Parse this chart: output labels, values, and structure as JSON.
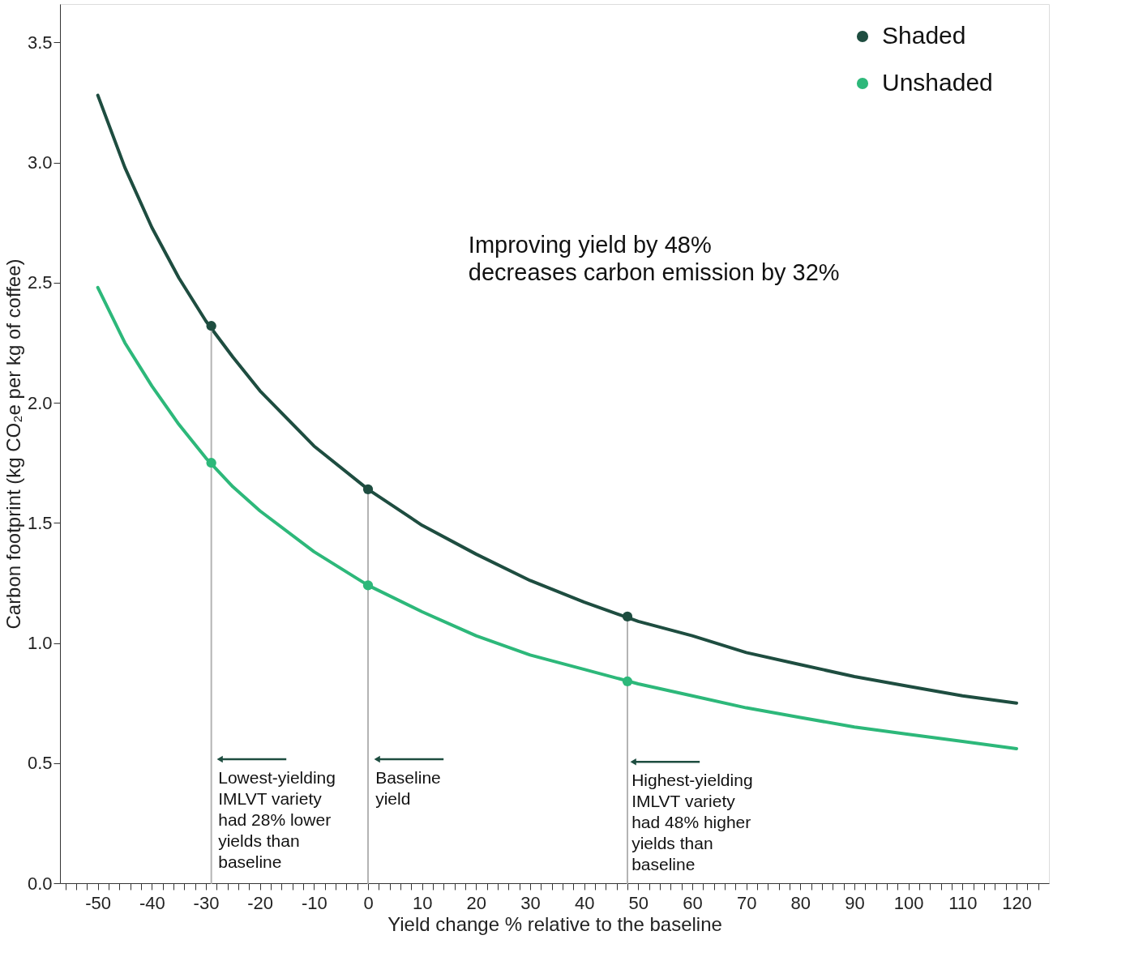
{
  "chart_data": {
    "type": "line",
    "xlabel": "Yield change % relative to the baseline",
    "ylabel": "Carbon footprint (kg CO₂e per kg of coffee)",
    "xlim": [
      -57,
      126
    ],
    "ylim": [
      0,
      3.66
    ],
    "xticks": [
      {
        "value": -56,
        "label": null
      },
      {
        "value": -54,
        "label": null
      },
      {
        "value": -52,
        "label": null
      },
      -50,
      {
        "value": -48,
        "label": null
      },
      {
        "value": -46,
        "label": null
      },
      {
        "value": -44,
        "label": null
      },
      {
        "value": -42,
        "label": null
      },
      -40,
      {
        "value": -38,
        "label": null
      },
      {
        "value": -36,
        "label": null
      },
      {
        "value": -34,
        "label": null
      },
      {
        "value": -32,
        "label": null
      },
      -30,
      {
        "value": -28,
        "label": null
      },
      {
        "value": -26,
        "label": null
      },
      {
        "value": -24,
        "label": null
      },
      {
        "value": -22,
        "label": null
      },
      -20,
      {
        "value": -18,
        "label": null
      },
      {
        "value": -16,
        "label": null
      },
      {
        "value": -14,
        "label": null
      },
      {
        "value": -12,
        "label": null
      },
      -10,
      {
        "value": -8,
        "label": null
      },
      {
        "value": -6,
        "label": null
      },
      {
        "value": -4,
        "label": null
      },
      {
        "value": -2,
        "label": null
      },
      0,
      {
        "value": 2,
        "label": null
      },
      {
        "value": 4,
        "label": null
      },
      {
        "value": 6,
        "label": null
      },
      {
        "value": 8,
        "label": null
      },
      10,
      {
        "value": 12,
        "label": null
      },
      {
        "value": 14,
        "label": null
      },
      {
        "value": 16,
        "label": null
      },
      {
        "value": 18,
        "label": null
      },
      20,
      {
        "value": 22,
        "label": null
      },
      {
        "value": 24,
        "label": null
      },
      {
        "value": 26,
        "label": null
      },
      {
        "value": 28,
        "label": null
      },
      30,
      {
        "value": 32,
        "label": null
      },
      {
        "value": 34,
        "label": null
      },
      {
        "value": 36,
        "label": null
      },
      {
        "value": 38,
        "label": null
      },
      40,
      {
        "value": 42,
        "label": null
      },
      {
        "value": 44,
        "label": null
      },
      {
        "value": 46,
        "label": null
      },
      {
        "value": 48,
        "label": null
      },
      50,
      {
        "value": 52,
        "label": null
      },
      {
        "value": 54,
        "label": null
      },
      {
        "value": 56,
        "label": null
      },
      {
        "value": 58,
        "label": null
      },
      60,
      {
        "value": 62,
        "label": null
      },
      {
        "value": 64,
        "label": null
      },
      {
        "value": 66,
        "label": null
      },
      {
        "value": 68,
        "label": null
      },
      70,
      {
        "value": 72,
        "label": null
      },
      {
        "value": 74,
        "label": null
      },
      {
        "value": 76,
        "label": null
      },
      {
        "value": 78,
        "label": null
      },
      80,
      {
        "value": 82,
        "label": null
      },
      {
        "value": 84,
        "label": null
      },
      {
        "value": 86,
        "label": null
      },
      {
        "value": 88,
        "label": null
      },
      90,
      {
        "value": 92,
        "label": null
      },
      {
        "value": 94,
        "label": null
      },
      {
        "value": 96,
        "label": null
      },
      {
        "value": 98,
        "label": null
      },
      100,
      {
        "value": 102,
        "label": null
      },
      {
        "value": 104,
        "label": null
      },
      {
        "value": 106,
        "label": null
      },
      {
        "value": 108,
        "label": null
      },
      110,
      {
        "value": 112,
        "label": null
      },
      {
        "value": 114,
        "label": null
      },
      {
        "value": 116,
        "label": null
      },
      {
        "value": 118,
        "label": null
      },
      120,
      {
        "value": 122,
        "label": null
      },
      {
        "value": 124,
        "label": null
      }
    ],
    "yticks": [
      {
        "value": 0,
        "label": "0.0"
      },
      0.5,
      {
        "value": 1,
        "label": "1.0"
      },
      1.5,
      {
        "value": 2,
        "label": "2.0"
      },
      2.5,
      {
        "value": 3,
        "label": "3.0"
      },
      3.5
    ],
    "grid": false,
    "legend": "top right",
    "line_style": "solid",
    "series": [
      {
        "name": "Shaded",
        "type": "line",
        "color": "#1e4d40",
        "marker": "none",
        "x": [
          -50,
          -45,
          -40,
          -35,
          -30,
          -25,
          -20,
          -10,
          0,
          10,
          20,
          30,
          40,
          50,
          60,
          70,
          80,
          90,
          100,
          110,
          120
        ],
        "values": [
          3.28,
          2.98,
          2.73,
          2.52,
          2.34,
          2.19,
          2.05,
          1.82,
          1.64,
          1.49,
          1.37,
          1.26,
          1.17,
          1.09,
          1.03,
          0.96,
          0.91,
          0.86,
          0.82,
          0.78,
          0.75
        ]
      },
      {
        "name": "Unshaded",
        "type": "line",
        "color": "#2db87a",
        "marker": "none",
        "x": [
          -50,
          -45,
          -40,
          -35,
          -30,
          -25,
          -20,
          -10,
          0,
          10,
          20,
          30,
          40,
          50,
          60,
          70,
          80,
          90,
          100,
          110,
          120
        ],
        "values": [
          2.48,
          2.25,
          2.07,
          1.91,
          1.77,
          1.65,
          1.55,
          1.38,
          1.24,
          1.13,
          1.03,
          0.95,
          0.89,
          0.83,
          0.78,
          0.73,
          0.69,
          0.65,
          0.62,
          0.59,
          0.56
        ]
      },
      {
        "type": "line",
        "color": "#b4b4b4",
        "marker": "none",
        "x": [
          -29,
          -29
        ],
        "values": [
          0,
          2.32
        ]
      },
      {
        "type": "line",
        "color": "#b4b4b4",
        "marker": "none",
        "x": [
          0,
          0
        ],
        "values": [
          0,
          1.64
        ]
      },
      {
        "type": "line",
        "color": "#b4b4b4",
        "marker": "none",
        "x": [
          48,
          48
        ],
        "values": [
          0,
          1.11
        ]
      },
      {
        "type": "scatter",
        "color": "#1e4d40",
        "marker": "circle",
        "x": [
          -29,
          0,
          48
        ],
        "values": [
          2.32,
          1.64,
          1.11
        ]
      },
      {
        "type": "scatter",
        "color": "#2db87a",
        "marker": "circle",
        "x": [
          -29,
          0,
          48
        ],
        "values": [
          1.75,
          1.24,
          0.84
        ]
      }
    ],
    "annotations": [
      "Improving yield by 48%\ndecreases carbon emission by 32%",
      "Lowest-yielding\nIMLVT variety\nhad 28% lower\nyields than\nbaseline",
      "Baseline\nyield",
      "Highest-yielding\nIMLVT variety\nhad 48% higher\nyields than\nbaseline"
    ]
  }
}
